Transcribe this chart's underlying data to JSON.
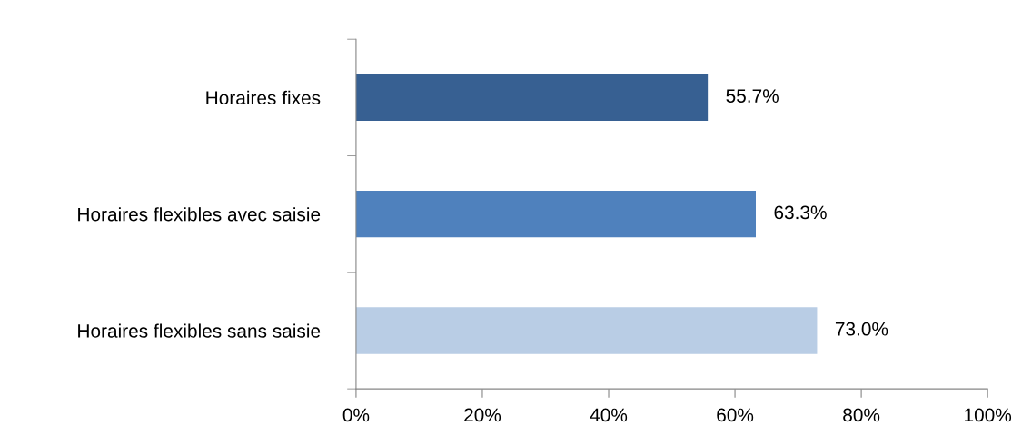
{
  "chart_data": {
    "type": "bar",
    "orientation": "horizontal",
    "categories": [
      "Horaires fixes",
      "Horaires flexibles avec saisie",
      "Horaires flexibles sans saisie"
    ],
    "values": [
      55.7,
      63.3,
      73.0
    ],
    "colors": [
      "#376092",
      "#4f81bd",
      "#b9cde5"
    ],
    "value_labels": [
      "55.7%",
      "63.3%",
      "73.0%"
    ],
    "xlim": [
      0,
      100
    ],
    "xticks": [
      {
        "value": 0,
        "label": "0%"
      },
      {
        "value": 20,
        "label": "20%"
      },
      {
        "value": 40,
        "label": "40%"
      },
      {
        "value": 60,
        "label": "60%"
      },
      {
        "value": 80,
        "label": "80%"
      },
      {
        "value": 100,
        "label": "100%"
      }
    ]
  }
}
